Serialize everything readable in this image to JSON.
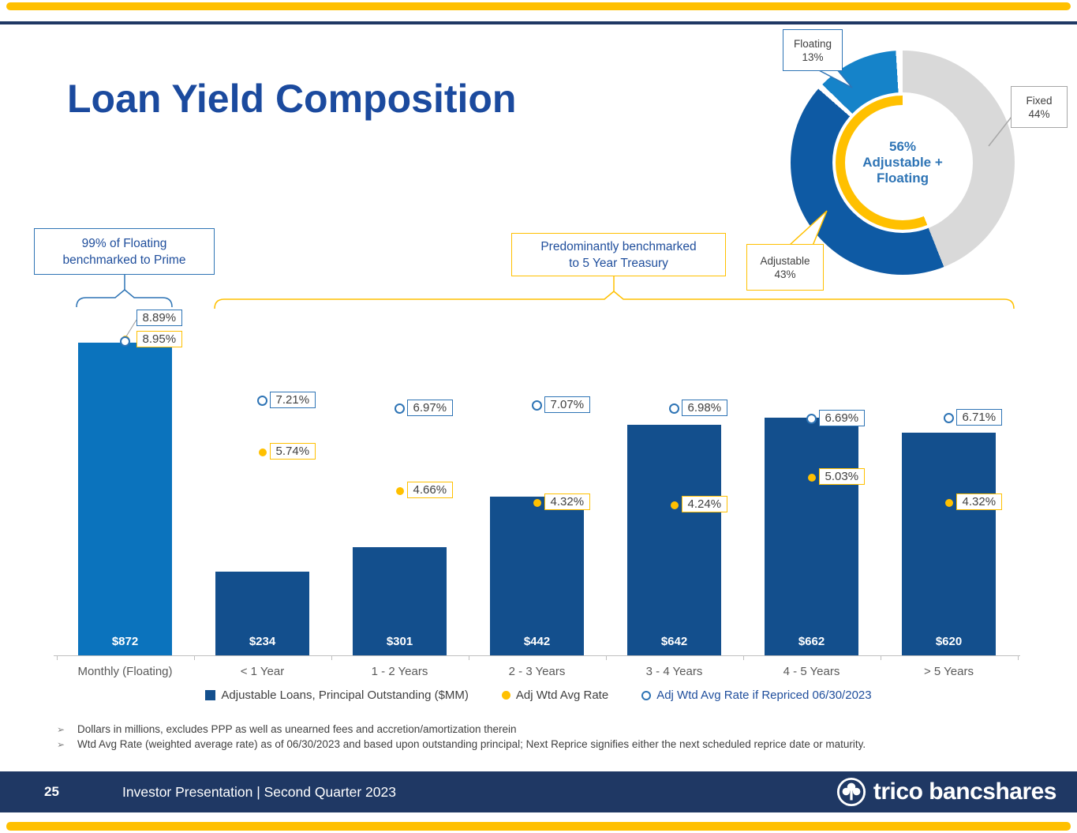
{
  "colors": {
    "gold": "#FFC000",
    "navy": "#1F3864",
    "title_blue": "#1B4A9E",
    "bar_dark": "#134F8D",
    "bar_light": "#0B73BD",
    "donut_dark": "#0E5AA4",
    "donut_light": "#1583C9",
    "gray_slice": "#D9D9D9",
    "blue_border": "#2E74B5",
    "text_dark": "#404040",
    "text_blue": "#1F4E9C",
    "axis_gray": "#BFBFBF",
    "label_gray": "#595959"
  },
  "title": "Loan Yield Composition",
  "donut": {
    "center": {
      "line1": "56%",
      "line2": "Adjustable +",
      "line3": "Floating"
    },
    "slices": [
      {
        "label": "Fixed",
        "pct": 44
      },
      {
        "label": "Adjustable",
        "pct": 43
      },
      {
        "label": "Floating",
        "pct": 13
      }
    ],
    "inner_arc_pct": 56,
    "callouts": {
      "floating": {
        "line1": "Floating",
        "line2": "13%"
      },
      "fixed": {
        "line1": "Fixed",
        "line2": "44%"
      },
      "adjustable": {
        "line1": "Adjustable",
        "line2": "43%"
      }
    }
  },
  "annotations": {
    "left_box_line1": "99% of Floating",
    "left_box_line2": "benchmarked to Prime",
    "mid_box_line1": "Predominantly benchmarked",
    "mid_box_line2": "to 5 Year Treasury"
  },
  "chart_data": {
    "type": "bar",
    "categories": [
      "Monthly (Floating)",
      "< 1 Year",
      "1 - 2 Years",
      "2 - 3 Years",
      "3 - 4 Years",
      "4 - 5 Years",
      "> 5 Years"
    ],
    "series": [
      {
        "name": "Adjustable Loans, Principal Outstanding ($MM)",
        "type": "bar",
        "values": [
          872,
          234,
          301,
          442,
          642,
          662,
          620
        ],
        "value_labels": [
          "$872",
          "$234",
          "$301",
          "$442",
          "$642",
          "$662",
          "$620"
        ]
      },
      {
        "name": "Adj Wtd Avg Rate",
        "type": "point",
        "values": [
          8.95,
          5.74,
          4.66,
          4.32,
          4.24,
          5.03,
          4.32
        ],
        "value_labels": [
          "8.95%",
          "5.74%",
          "4.66%",
          "4.32%",
          "4.24%",
          "5.03%",
          "4.32%"
        ]
      },
      {
        "name": "Adj Wtd Avg Rate if Repriced 06/30/2023",
        "type": "open_point",
        "values": [
          8.89,
          7.21,
          6.97,
          7.07,
          6.98,
          6.69,
          6.71
        ],
        "value_labels": [
          "8.89%",
          "7.21%",
          "6.97%",
          "7.07%",
          "6.98%",
          "6.69%",
          "6.71%"
        ]
      }
    ],
    "ylim_left": [
      0,
      1000
    ],
    "ylim_right_pct": [
      0,
      10
    ],
    "grid": false,
    "legend_position": "bottom"
  },
  "legend": [
    {
      "label": "Adjustable Loans, Principal Outstanding ($MM)",
      "symbol": "square"
    },
    {
      "label": "Adj Wtd Avg Rate",
      "symbol": "dot"
    },
    {
      "label": "Adj Wtd Avg Rate if Repriced 06/30/2023",
      "symbol": "open_dot"
    }
  ],
  "footnote_bullet": "➢",
  "footnotes": [
    "Dollars in millions, excludes PPP as well as unearned fees and accretion/amortization therein",
    "Wtd Avg Rate (weighted average rate) as of 06/30/2023 and based upon outstanding principal; Next Reprice signifies either the next scheduled reprice date or maturity."
  ],
  "footer": {
    "page_number": "25",
    "text": "Investor Presentation | Second Quarter 2023",
    "logo_text": "trico bancshares"
  }
}
